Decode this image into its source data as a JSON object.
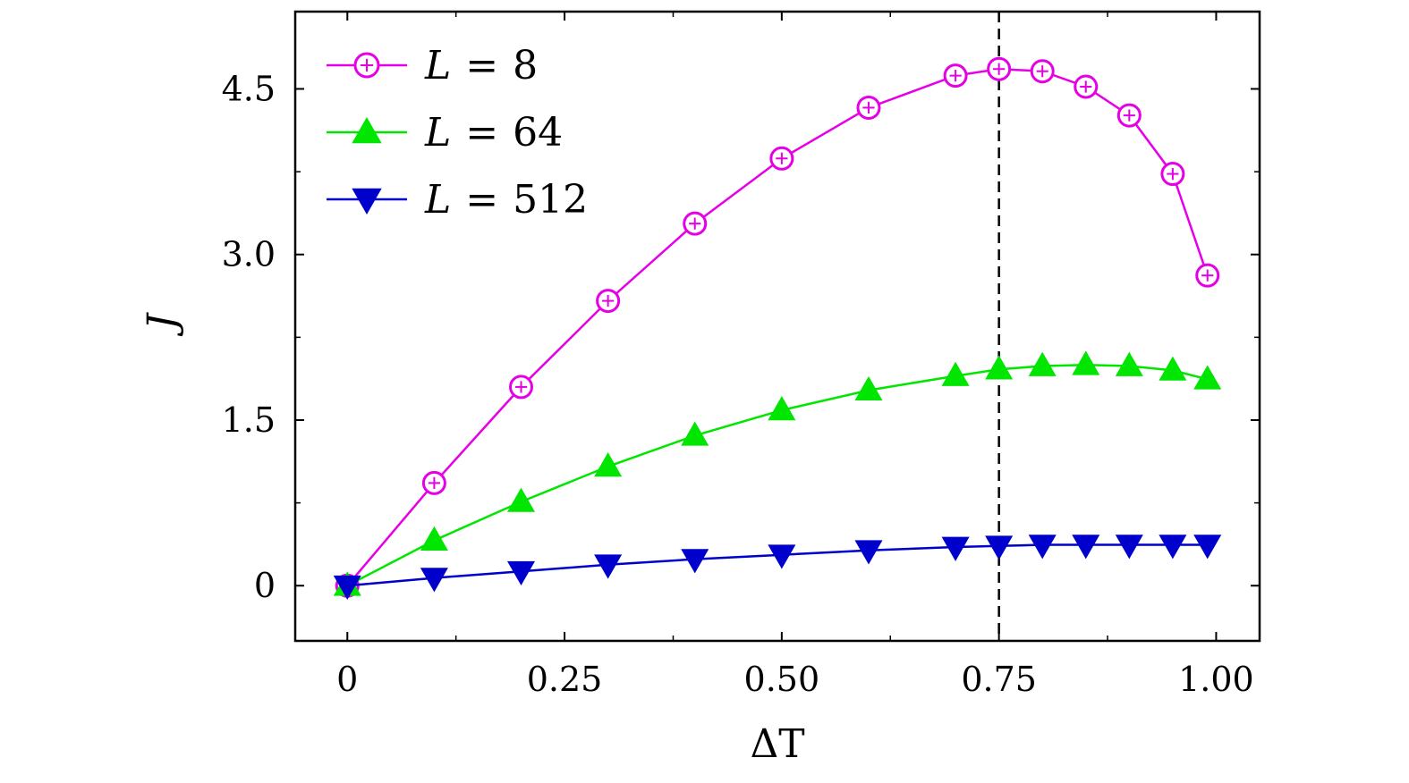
{
  "chart_data": {
    "type": "line",
    "xlabel": "ΔT",
    "ylabel": "J",
    "xlim": [
      -0.06,
      1.05
    ],
    "ylim": [
      -0.5,
      5.2
    ],
    "x_ticks": [
      {
        "value": 0,
        "label": "0"
      },
      {
        "value": 0.25,
        "label": "0.25"
      },
      {
        "value": 0.5,
        "label": "0.50"
      },
      {
        "value": 0.75,
        "label": "0.75"
      },
      {
        "value": 1.0,
        "label": "1.00"
      }
    ],
    "x_minor_ticks": [
      0.125,
      0.375,
      0.625,
      0.875
    ],
    "y_ticks": [
      {
        "value": 0,
        "label": "0"
      },
      {
        "value": 1.5,
        "label": "1.5"
      },
      {
        "value": 3.0,
        "label": "3.0"
      },
      {
        "value": 4.5,
        "label": "4.5"
      }
    ],
    "y_minor_ticks": [
      0.75,
      2.25,
      3.75
    ],
    "reference_line": {
      "x": 0.75,
      "style": "dashed"
    },
    "grid": false,
    "legend_position": "top-left",
    "series": [
      {
        "name": "L = 8",
        "legend_var": "L",
        "legend_eq": "=",
        "legend_num": "8",
        "color": "#e600e6",
        "marker": "circle",
        "x": [
          0,
          0.1,
          0.2,
          0.3,
          0.4,
          0.5,
          0.6,
          0.7,
          0.75,
          0.8,
          0.85,
          0.9,
          0.95,
          0.99
        ],
        "y": [
          0,
          0.93,
          1.8,
          2.58,
          3.28,
          3.87,
          4.33,
          4.62,
          4.68,
          4.66,
          4.52,
          4.26,
          3.73,
          2.81
        ]
      },
      {
        "name": "L = 64",
        "legend_var": "L",
        "legend_eq": "=",
        "legend_num": "64",
        "color": "#00e600",
        "marker": "triangle-up",
        "x": [
          0,
          0.1,
          0.2,
          0.3,
          0.4,
          0.5,
          0.6,
          0.7,
          0.75,
          0.8,
          0.85,
          0.9,
          0.95,
          0.99
        ],
        "y": [
          0,
          0.41,
          0.76,
          1.08,
          1.36,
          1.59,
          1.77,
          1.9,
          1.96,
          1.99,
          2.0,
          1.99,
          1.95,
          1.87
        ]
      },
      {
        "name": "L = 512",
        "legend_var": "L",
        "legend_eq": "=",
        "legend_num": "512",
        "color": "#0000cc",
        "marker": "triangle-down",
        "x": [
          0,
          0.1,
          0.2,
          0.3,
          0.4,
          0.5,
          0.6,
          0.7,
          0.75,
          0.8,
          0.85,
          0.9,
          0.95,
          0.99
        ],
        "y": [
          0,
          0.07,
          0.13,
          0.19,
          0.24,
          0.28,
          0.32,
          0.35,
          0.36,
          0.37,
          0.37,
          0.37,
          0.37,
          0.37
        ]
      }
    ]
  }
}
